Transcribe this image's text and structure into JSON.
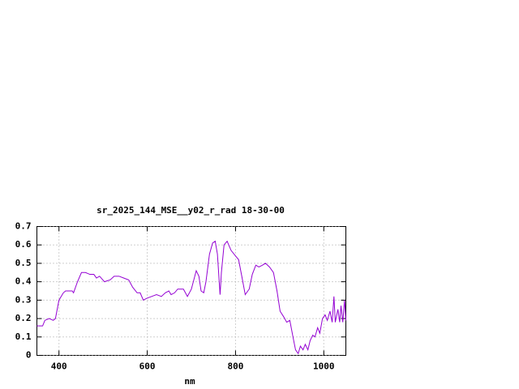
{
  "chart_data": {
    "type": "line",
    "title": "sr_2025_144_MSE__y02_r_rad 18-30-00",
    "x_label": "nm",
    "xlim": [
      350,
      1050
    ],
    "xticks": [
      400,
      600,
      800,
      1000
    ],
    "ylim": [
      0,
      0.7
    ],
    "yticks": [
      0,
      0.1,
      0.2,
      0.3,
      0.4,
      0.5,
      0.6,
      0.7
    ],
    "grid": true,
    "series": [
      {
        "color": "#9400d3",
        "x": [
          350,
          363,
          368,
          378,
          387,
          392,
          400,
          410,
          415,
          430,
          433,
          442,
          451,
          460,
          470,
          479,
          485,
          492,
          503,
          516,
          525,
          536,
          547,
          558,
          567,
          577,
          584,
          591,
          599,
          610,
          621,
          632,
          641,
          649,
          654,
          662,
          669,
          682,
          691,
          700,
          711,
          717,
          722,
          728,
          733,
          741,
          748,
          754,
          759,
          765,
          768,
          774,
          781,
          790,
          800,
          807,
          815,
          822,
          831,
          838,
          846,
          853,
          861,
          868,
          877,
          886,
          894,
          901,
          909,
          916,
          923,
          931,
          936,
          942,
          947,
          953,
          958,
          964,
          969,
          975,
          980,
          986,
          991,
          997,
          1003,
          1008,
          1014,
          1019,
          1023,
          1026,
          1032,
          1036,
          1039,
          1043,
          1047,
          1050
        ],
        "values": [
          0.16,
          0.16,
          0.19,
          0.2,
          0.19,
          0.2,
          0.3,
          0.34,
          0.35,
          0.35,
          0.34,
          0.4,
          0.45,
          0.45,
          0.44,
          0.44,
          0.42,
          0.43,
          0.4,
          0.41,
          0.43,
          0.43,
          0.42,
          0.41,
          0.37,
          0.34,
          0.34,
          0.3,
          0.31,
          0.32,
          0.33,
          0.32,
          0.34,
          0.35,
          0.33,
          0.34,
          0.36,
          0.36,
          0.32,
          0.36,
          0.46,
          0.43,
          0.35,
          0.34,
          0.4,
          0.55,
          0.61,
          0.62,
          0.55,
          0.33,
          0.45,
          0.6,
          0.62,
          0.57,
          0.54,
          0.52,
          0.42,
          0.33,
          0.36,
          0.44,
          0.49,
          0.48,
          0.49,
          0.5,
          0.48,
          0.45,
          0.35,
          0.24,
          0.21,
          0.18,
          0.19,
          0.09,
          0.03,
          0.01,
          0.05,
          0.03,
          0.06,
          0.03,
          0.08,
          0.11,
          0.1,
          0.15,
          0.12,
          0.2,
          0.22,
          0.19,
          0.24,
          0.18,
          0.32,
          0.18,
          0.25,
          0.18,
          0.27,
          0.18,
          0.3,
          0.19
        ]
      }
    ]
  }
}
